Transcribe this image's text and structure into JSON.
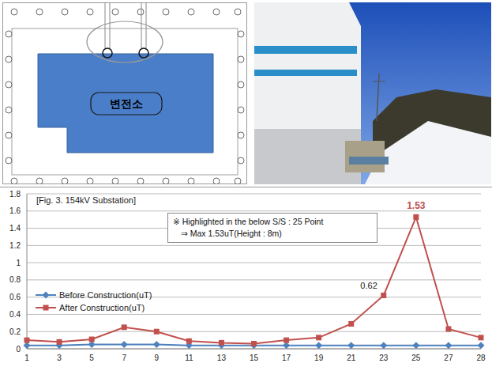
{
  "chart_data": {
    "type": "line",
    "title": "[Fig. 3. 154kV Substation]",
    "annotations": [
      "※ Highlighted in the below S/S : 25 Point",
      "⇒ Max 1.53uT(Height : 8m)"
    ],
    "categories": [
      "1",
      "3",
      "5",
      "7",
      "9",
      "11",
      "13",
      "15",
      "17",
      "19",
      "21",
      "23",
      "25",
      "27",
      "28"
    ],
    "series": [
      {
        "name": "Before Construction(uT)",
        "color": "#4f81bd",
        "marker": "diamond",
        "values": [
          0.04,
          0.04,
          0.05,
          0.05,
          0.05,
          0.04,
          0.04,
          0.04,
          0.04,
          0.04,
          0.04,
          0.04,
          0.04,
          0.04,
          0.04
        ]
      },
      {
        "name": "After Construction(uT)",
        "color": "#c0504d",
        "marker": "square",
        "values": [
          0.1,
          0.08,
          0.11,
          0.25,
          0.2,
          0.09,
          0.07,
          0.06,
          0.1,
          0.13,
          0.29,
          0.62,
          1.53,
          0.23,
          0.13
        ],
        "value_labels": [
          null,
          null,
          null,
          null,
          null,
          null,
          null,
          null,
          null,
          null,
          null,
          "0.62",
          "1.53",
          null,
          null
        ]
      }
    ],
    "ylim": [
      0,
      1.8
    ],
    "yticks": [
      0,
      0.2,
      0.4,
      0.6,
      0.8,
      1,
      1.2,
      1.4,
      1.6,
      1.8
    ],
    "grid": true,
    "legend": "left"
  },
  "diagram": {
    "label": "변전소"
  }
}
